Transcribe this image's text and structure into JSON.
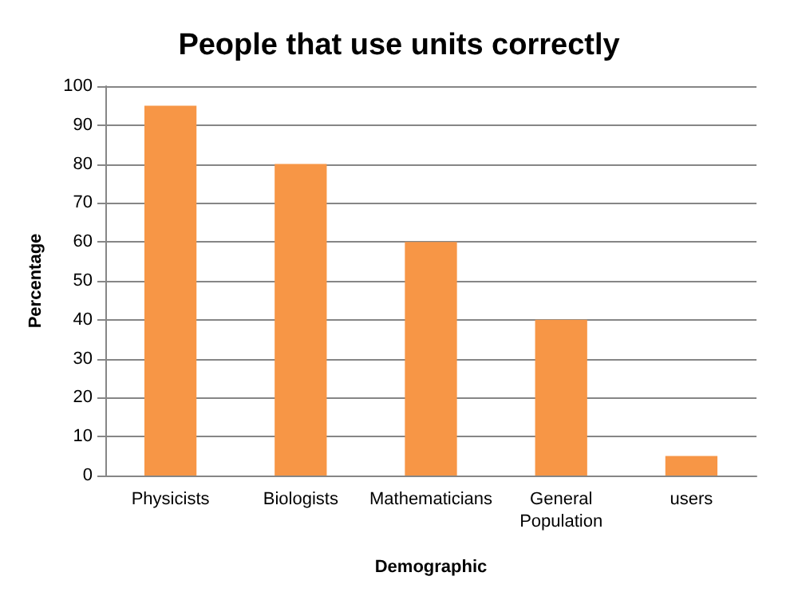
{
  "chart_data": {
    "type": "bar",
    "title": "People that use units correctly",
    "xlabel": "Demographic",
    "ylabel": "Percentage",
    "categories": [
      "Physicists",
      "Biologists",
      "Mathematicians",
      "General\nPopulation",
      "users"
    ],
    "values": [
      95,
      80,
      60,
      40,
      5
    ],
    "color": "#f79646",
    "ylim": [
      0,
      100
    ],
    "yticks": [
      0,
      10,
      20,
      30,
      40,
      50,
      60,
      70,
      80,
      90,
      100
    ],
    "grid": "y"
  }
}
